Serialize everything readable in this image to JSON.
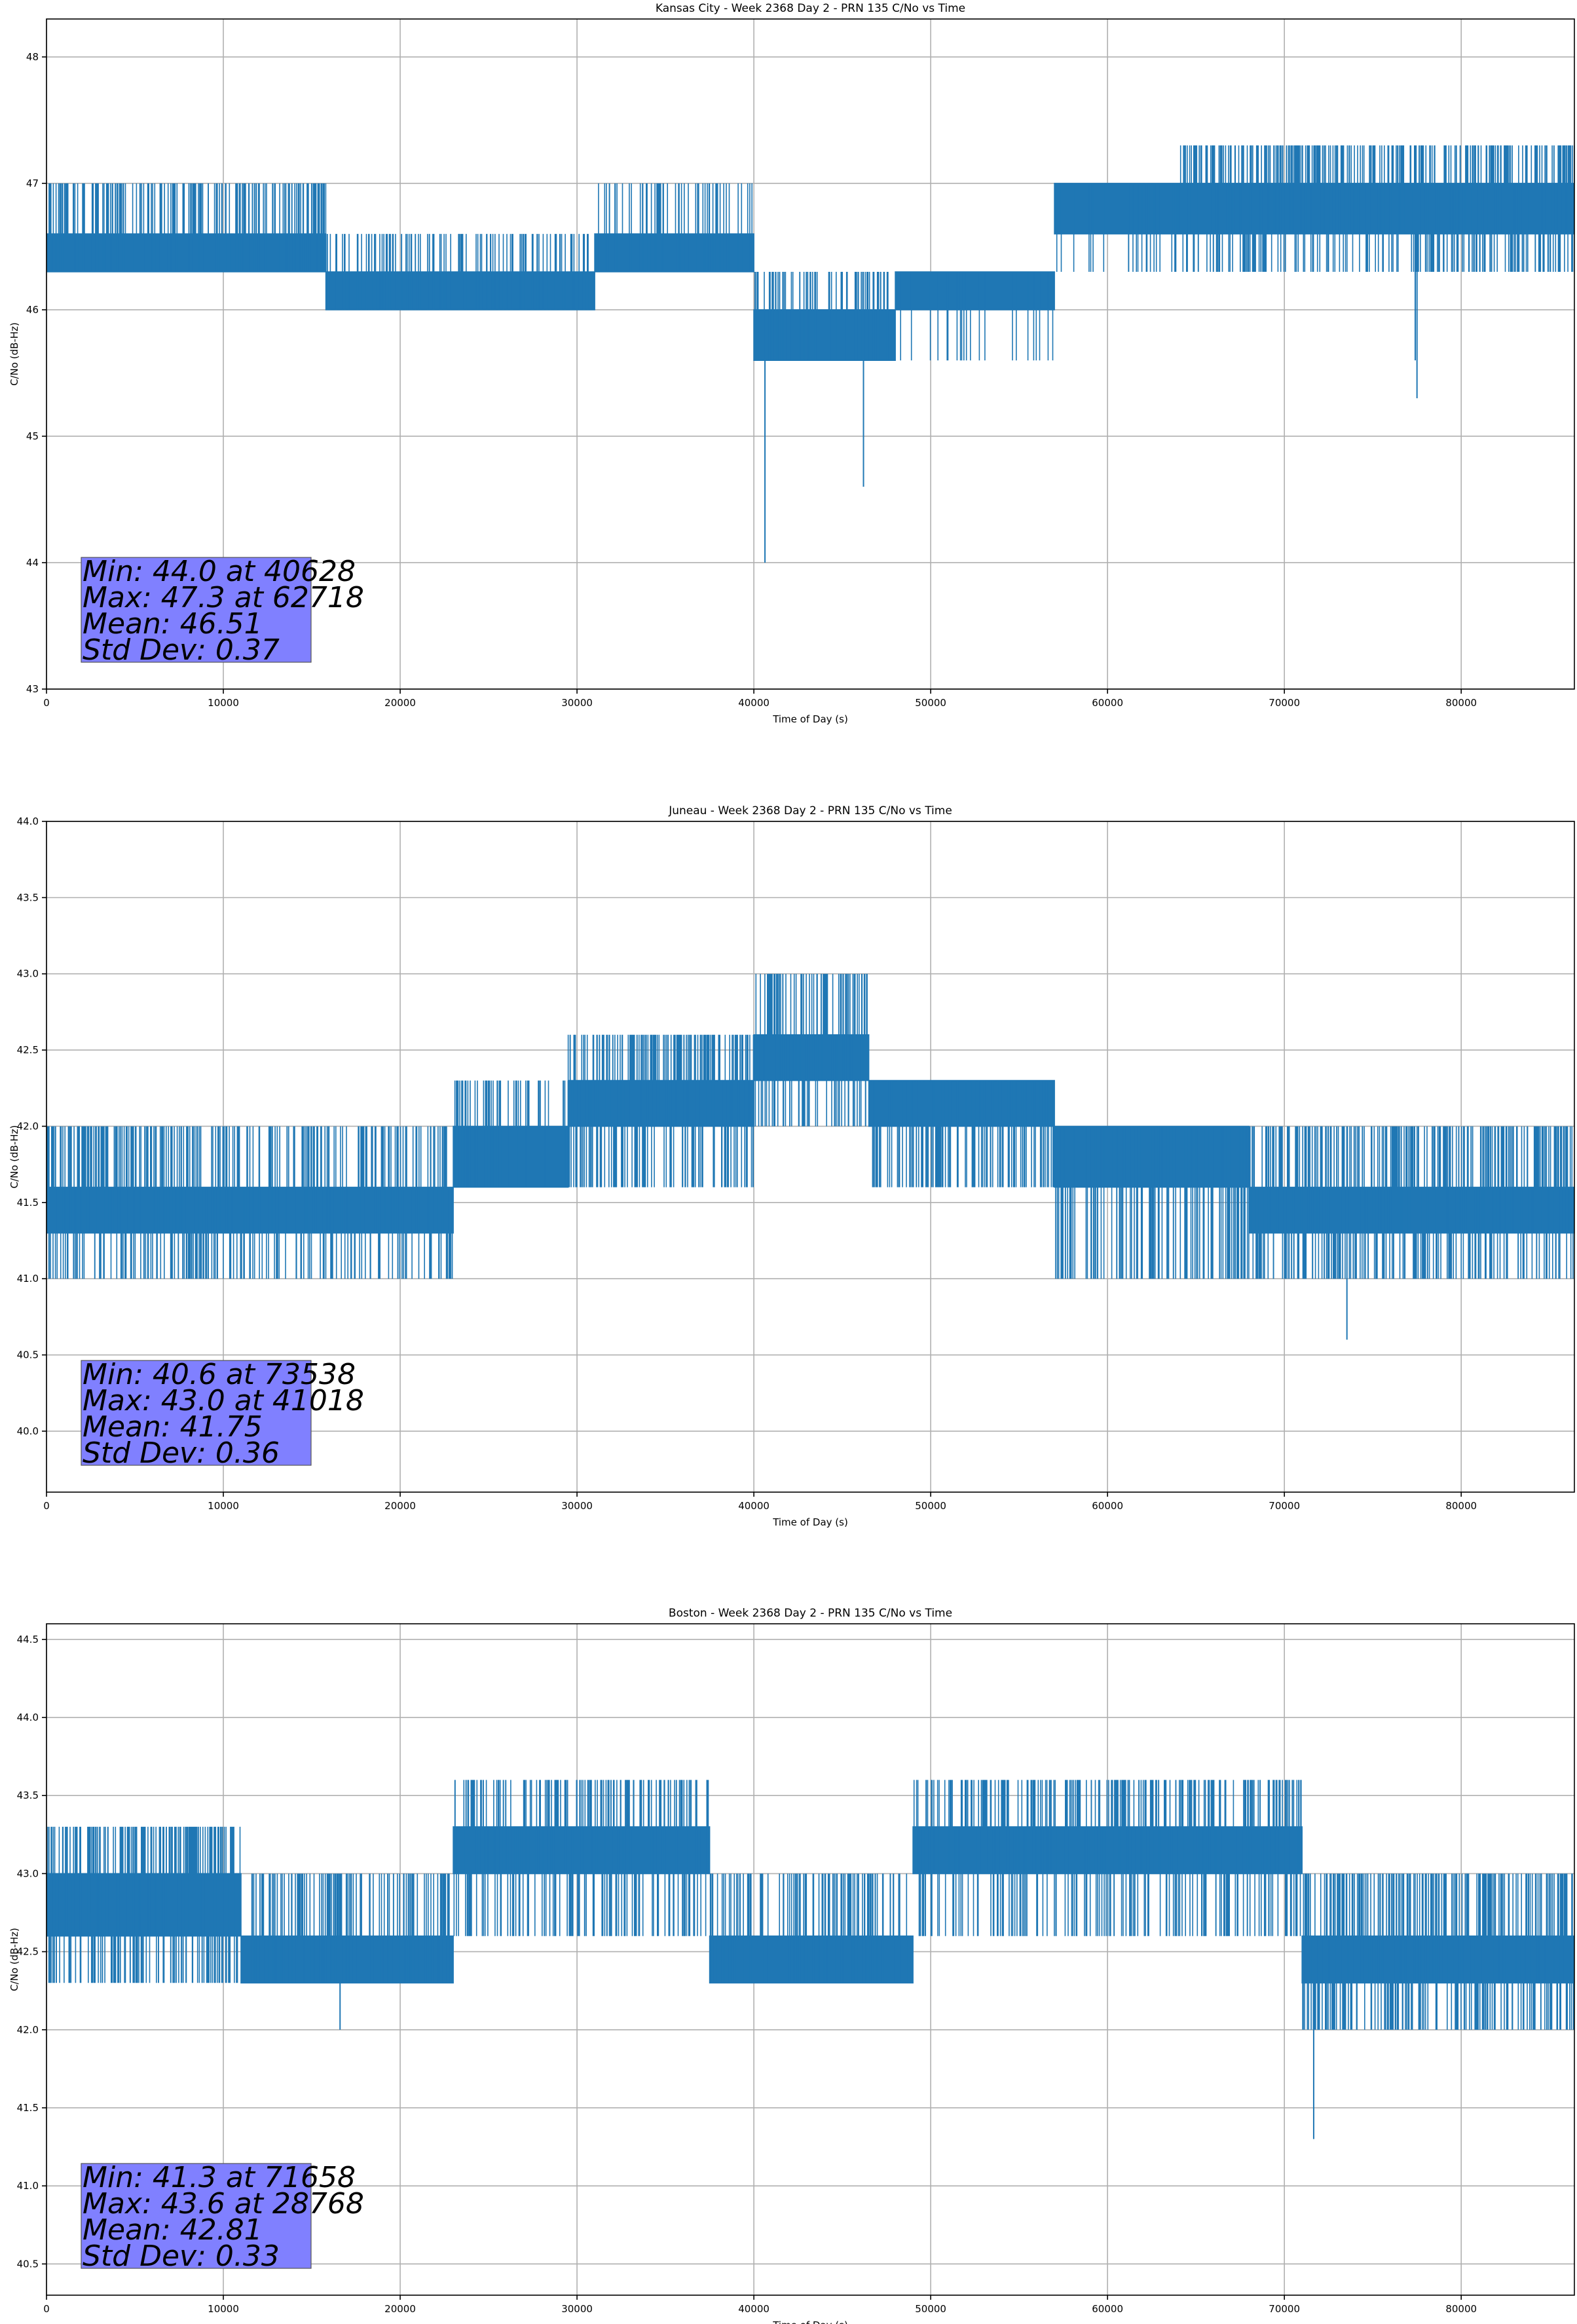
{
  "chart_data": [
    {
      "type": "line",
      "title": "Kansas City - Week 2368 Day 2 - PRN 135 C/No vs Time",
      "xlabel": "Time of Day (s)",
      "ylabel": "C/No (dB-Hz)",
      "xlim": [
        0,
        86400
      ],
      "ylim": [
        43,
        48.3
      ],
      "xticks": [
        0,
        10000,
        20000,
        30000,
        40000,
        50000,
        60000,
        70000,
        80000
      ],
      "yticks": [
        43,
        44,
        45,
        46,
        47,
        48
      ],
      "ytick_labels": [
        "43",
        "44",
        "45",
        "46",
        "47",
        "48"
      ],
      "grid": true,
      "line_color": "#1f77b4",
      "stats_box_color": "#8080ff",
      "stats": [
        "Min: 44.0 at 40628",
        "Max: 47.3 at 62718",
        "Mean: 46.51",
        "Std Dev: 0.37"
      ],
      "segments": [
        {
          "x0": 0,
          "x1": 15800,
          "lo": 46.3,
          "hi": 46.6,
          "hi_spike": 47.0,
          "lo_spike": 46.3,
          "density": 0.35
        },
        {
          "x0": 15800,
          "x1": 31000,
          "lo": 46.0,
          "hi": 46.3,
          "hi_spike": 46.6,
          "lo_spike": 46.0,
          "density": 0.25
        },
        {
          "x0": 31000,
          "x1": 40000,
          "lo": 46.3,
          "hi": 46.6,
          "hi_spike": 47.0,
          "lo_spike": 46.3,
          "density": 0.25
        },
        {
          "x0": 40000,
          "x1": 48000,
          "lo": 45.6,
          "hi": 46.0,
          "hi_spike": 46.3,
          "lo_spike": 45.6,
          "density": 0.3
        },
        {
          "x0": 48000,
          "x1": 57000,
          "lo": 46.0,
          "hi": 46.3,
          "hi_spike": 46.3,
          "lo_spike": 45.6,
          "density": 0.15
        },
        {
          "x0": 57000,
          "x1": 64000,
          "lo": 46.6,
          "hi": 47.0,
          "hi_spike": 47.0,
          "lo_spike": 46.3,
          "density": 0.2
        },
        {
          "x0": 64000,
          "x1": 86400,
          "lo": 46.6,
          "hi": 47.0,
          "hi_spike": 47.3,
          "lo_spike": 46.3,
          "density": 0.4
        }
      ],
      "outliers": [
        {
          "x": 40628,
          "y": 44.0
        },
        {
          "x": 46200,
          "y": 44.6
        },
        {
          "x": 77500,
          "y": 45.3
        },
        {
          "x": 77400,
          "y": 45.6
        }
      ]
    },
    {
      "type": "line",
      "title": "Juneau - Week 2368 Day 2 - PRN 135 C/No vs Time",
      "xlabel": "Time of Day (s)",
      "ylabel": "C/No (dB-Hz)",
      "xlim": [
        0,
        86400
      ],
      "ylim": [
        39.6,
        44.0
      ],
      "xticks": [
        0,
        10000,
        20000,
        30000,
        40000,
        50000,
        60000,
        70000,
        80000
      ],
      "yticks": [
        40.0,
        40.5,
        41.0,
        41.5,
        42.0,
        42.5,
        43.0,
        43.5,
        44.0
      ],
      "ytick_labels": [
        "40.0",
        "40.5",
        "41.0",
        "41.5",
        "42.0",
        "42.5",
        "43.0",
        "43.5",
        "44.0"
      ],
      "grid": true,
      "line_color": "#1f77b4",
      "stats_box_color": "#8080ff",
      "stats": [
        "Min: 40.6 at 73538",
        "Max: 43.0 at 41018",
        "Mean: 41.75",
        "Std Dev: 0.36"
      ],
      "segments": [
        {
          "x0": 0,
          "x1": 10000,
          "lo": 41.3,
          "hi": 41.6,
          "hi_spike": 42.0,
          "lo_spike": 41.0,
          "density": 0.45
        },
        {
          "x0": 10000,
          "x1": 23000,
          "lo": 41.3,
          "hi": 41.6,
          "hi_spike": 42.0,
          "lo_spike": 41.0,
          "density": 0.3
        },
        {
          "x0": 23000,
          "x1": 29500,
          "lo": 41.6,
          "hi": 42.0,
          "hi_spike": 42.3,
          "lo_spike": 41.6,
          "density": 0.25
        },
        {
          "x0": 29500,
          "x1": 40000,
          "lo": 42.0,
          "hi": 42.3,
          "hi_spike": 42.6,
          "lo_spike": 41.6,
          "density": 0.4
        },
        {
          "x0": 40000,
          "x1": 46500,
          "lo": 42.3,
          "hi": 42.6,
          "hi_spike": 43.0,
          "lo_spike": 42.0,
          "density": 0.4
        },
        {
          "x0": 46500,
          "x1": 57000,
          "lo": 42.0,
          "hi": 42.3,
          "hi_spike": 42.3,
          "lo_spike": 41.6,
          "density": 0.4
        },
        {
          "x0": 57000,
          "x1": 68000,
          "lo": 41.6,
          "hi": 42.0,
          "hi_spike": 42.0,
          "lo_spike": 41.0,
          "density": 0.45
        },
        {
          "x0": 68000,
          "x1": 86400,
          "lo": 41.3,
          "hi": 41.6,
          "hi_spike": 42.0,
          "lo_spike": 41.0,
          "density": 0.45
        }
      ],
      "outliers": [
        {
          "x": 73538,
          "y": 40.6
        }
      ]
    },
    {
      "type": "line",
      "title": "Boston - Week 2368 Day 2 - PRN 135 C/No vs Time",
      "xlabel": "Time of Day (s)",
      "ylabel": "C/No (dB-Hz)",
      "xlim": [
        0,
        86400
      ],
      "ylim": [
        40.3,
        44.6
      ],
      "xticks": [
        0,
        10000,
        20000,
        30000,
        40000,
        50000,
        60000,
        70000,
        80000
      ],
      "yticks": [
        40.5,
        41.0,
        41.5,
        42.0,
        42.5,
        43.0,
        43.5,
        44.0,
        44.5
      ],
      "ytick_labels": [
        "40.5",
        "41.0",
        "41.5",
        "42.0",
        "42.5",
        "43.0",
        "43.5",
        "44.0",
        "44.5"
      ],
      "grid": true,
      "line_color": "#1f77b4",
      "stats_box_color": "#8080ff",
      "stats": [
        "Min: 41.3 at 71658",
        "Max: 43.6 at 28768",
        "Mean: 42.81",
        "Std Dev: 0.33"
      ],
      "segments": [
        {
          "x0": 0,
          "x1": 11000,
          "lo": 42.6,
          "hi": 43.0,
          "hi_spike": 43.3,
          "lo_spike": 42.3,
          "density": 0.4
        },
        {
          "x0": 11000,
          "x1": 23000,
          "lo": 42.3,
          "hi": 42.6,
          "hi_spike": 43.0,
          "lo_spike": 42.3,
          "density": 0.35
        },
        {
          "x0": 23000,
          "x1": 37500,
          "lo": 43.0,
          "hi": 43.3,
          "hi_spike": 43.6,
          "lo_spike": 42.6,
          "density": 0.35
        },
        {
          "x0": 37500,
          "x1": 49000,
          "lo": 42.3,
          "hi": 42.6,
          "hi_spike": 43.0,
          "lo_spike": 42.3,
          "density": 0.3
        },
        {
          "x0": 49000,
          "x1": 71000,
          "lo": 43.0,
          "hi": 43.3,
          "hi_spike": 43.6,
          "lo_spike": 42.6,
          "density": 0.35
        },
        {
          "x0": 71000,
          "x1": 86400,
          "lo": 42.3,
          "hi": 42.6,
          "hi_spike": 43.0,
          "lo_spike": 42.0,
          "density": 0.45
        }
      ],
      "outliers": [
        {
          "x": 16600,
          "y": 42.0
        },
        {
          "x": 71658,
          "y": 41.3
        }
      ]
    }
  ]
}
